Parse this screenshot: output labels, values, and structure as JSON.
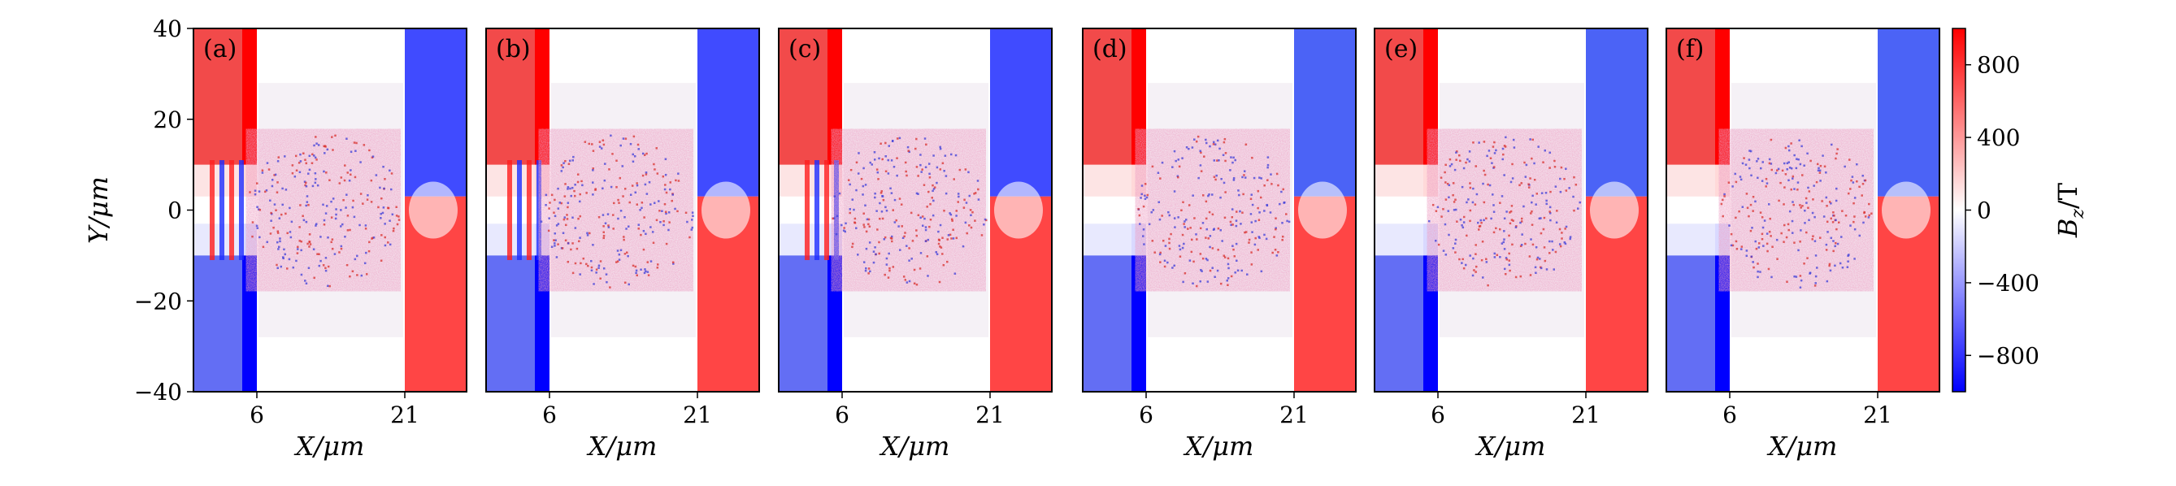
{
  "chart_data": {
    "type": "heatmap",
    "panels": [
      {
        "label": "(a)",
        "xlabel": "X/μm"
      },
      {
        "label": "(b)",
        "xlabel": "X/μm"
      },
      {
        "label": "(c)",
        "xlabel": "X/μm"
      },
      {
        "label": "(d)",
        "xlabel": "X/μm"
      },
      {
        "label": "(e)",
        "xlabel": "X/μm"
      },
      {
        "label": "(f)",
        "xlabel": "X/μm"
      }
    ],
    "ylabel": "Y/μm",
    "ylim": [
      -40,
      40
    ],
    "yticks": [
      40,
      20,
      0,
      -20,
      -40
    ],
    "ytick_labels": [
      "40",
      "20",
      "0",
      "−20",
      "−40"
    ],
    "xticks": [
      6,
      21
    ],
    "xtick_labels": [
      "6",
      "21"
    ],
    "colorbar": {
      "label": "B_z/T",
      "label_main": "B",
      "label_sub": "z",
      "label_unit": "/T",
      "range": [
        -1000,
        1000
      ],
      "ticks": [
        800,
        400,
        0,
        -400,
        -800
      ],
      "tick_labels": [
        "800",
        "400",
        "0",
        "−400",
        "−800"
      ],
      "colors": {
        "low": "#0000ff",
        "mid": "#ffffff",
        "high": "#ff0000"
      }
    }
  }
}
